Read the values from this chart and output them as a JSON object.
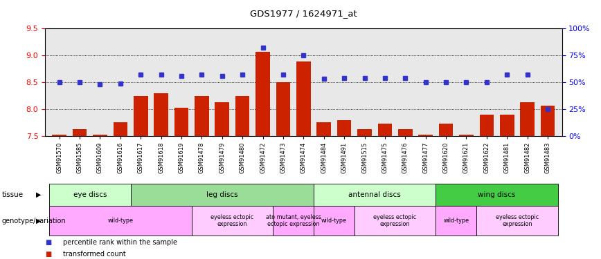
{
  "title": "GDS1977 / 1624971_at",
  "samples": [
    "GSM91570",
    "GSM91585",
    "GSM91609",
    "GSM91616",
    "GSM91617",
    "GSM91618",
    "GSM91619",
    "GSM91478",
    "GSM91479",
    "GSM91480",
    "GSM91472",
    "GSM91473",
    "GSM91474",
    "GSM91484",
    "GSM91491",
    "GSM91515",
    "GSM91475",
    "GSM91476",
    "GSM91477",
    "GSM91620",
    "GSM91621",
    "GSM91622",
    "GSM91481",
    "GSM91482",
    "GSM91483"
  ],
  "bar_values": [
    7.52,
    7.63,
    7.53,
    7.75,
    8.25,
    8.3,
    8.02,
    8.25,
    8.13,
    8.25,
    9.07,
    8.5,
    8.88,
    7.75,
    7.8,
    7.63,
    7.73,
    7.63,
    7.52,
    7.73,
    7.52,
    7.9,
    7.9,
    8.13,
    8.07
  ],
  "dot_values": [
    50,
    50,
    48,
    49,
    57,
    57,
    56,
    57,
    56,
    57,
    82,
    57,
    75,
    53,
    54,
    54,
    54,
    54,
    50,
    50,
    50,
    50,
    57,
    57,
    25
  ],
  "ylim_left": [
    7.5,
    9.5
  ],
  "ylim_right": [
    0,
    100
  ],
  "yticks_left": [
    7.5,
    8.0,
    8.5,
    9.0,
    9.5
  ],
  "yticks_right": [
    0,
    25,
    50,
    75,
    100
  ],
  "ytick_labels_right": [
    "0%",
    "25%",
    "50%",
    "75%",
    "100%"
  ],
  "bar_color": "#cc2200",
  "dot_color": "#3333cc",
  "tissue_groups": [
    {
      "label": "eye discs",
      "start": 0,
      "end": 4,
      "color": "#ccffcc"
    },
    {
      "label": "leg discs",
      "start": 4,
      "end": 13,
      "color": "#99dd99"
    },
    {
      "label": "antennal discs",
      "start": 13,
      "end": 19,
      "color": "#ccffcc"
    },
    {
      "label": "wing discs",
      "start": 19,
      "end": 25,
      "color": "#44cc44"
    }
  ],
  "genotype_groups": [
    {
      "label": "wild-type",
      "start": 0,
      "end": 7,
      "color": "#ffaaff"
    },
    {
      "label": "eyeless ectopic\nexpression",
      "start": 7,
      "end": 11,
      "color": "#ffccff"
    },
    {
      "label": "ato mutant, eyeless\nectopic expression",
      "start": 11,
      "end": 13,
      "color": "#ffaaff"
    },
    {
      "label": "wild-type",
      "start": 13,
      "end": 15,
      "color": "#ffaaff"
    },
    {
      "label": "eyeless ectopic\nexpression",
      "start": 15,
      "end": 19,
      "color": "#ffccff"
    },
    {
      "label": "wild-type",
      "start": 19,
      "end": 21,
      "color": "#ffaaff"
    },
    {
      "label": "eyeless ectopic\nexpression",
      "start": 21,
      "end": 25,
      "color": "#ffccff"
    }
  ],
  "legend_items": [
    {
      "color": "#cc2200",
      "label": "transformed count"
    },
    {
      "color": "#3333cc",
      "label": "percentile rank within the sample"
    }
  ],
  "bg_color": "#e8e8e8",
  "fig_width": 8.68,
  "fig_height": 3.75
}
